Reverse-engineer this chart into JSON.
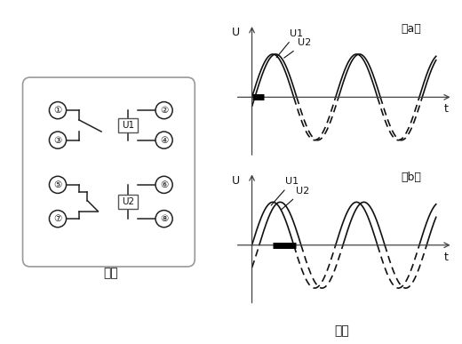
{
  "bg_color": "#ffffff",
  "fig1_label": "图一",
  "fig2_label": "图二",
  "title_a": "（a）",
  "title_b": "（b）",
  "pin_labels": [
    "①",
    "②",
    "③",
    "④",
    "⑤",
    "⑥",
    "⑦",
    "⑧"
  ],
  "coil_labels": [
    "U1",
    "U2"
  ],
  "axis_label_u": "U",
  "axis_label_t": "t",
  "phase_a": 0.22,
  "phase_b": 0.55,
  "wave_freq_a": 1.0,
  "wave_freq_b": 1.0,
  "wave_amp": 1.0,
  "xlim": [
    -0.5,
    4.8
  ],
  "ylim": [
    -1.5,
    1.7
  ]
}
